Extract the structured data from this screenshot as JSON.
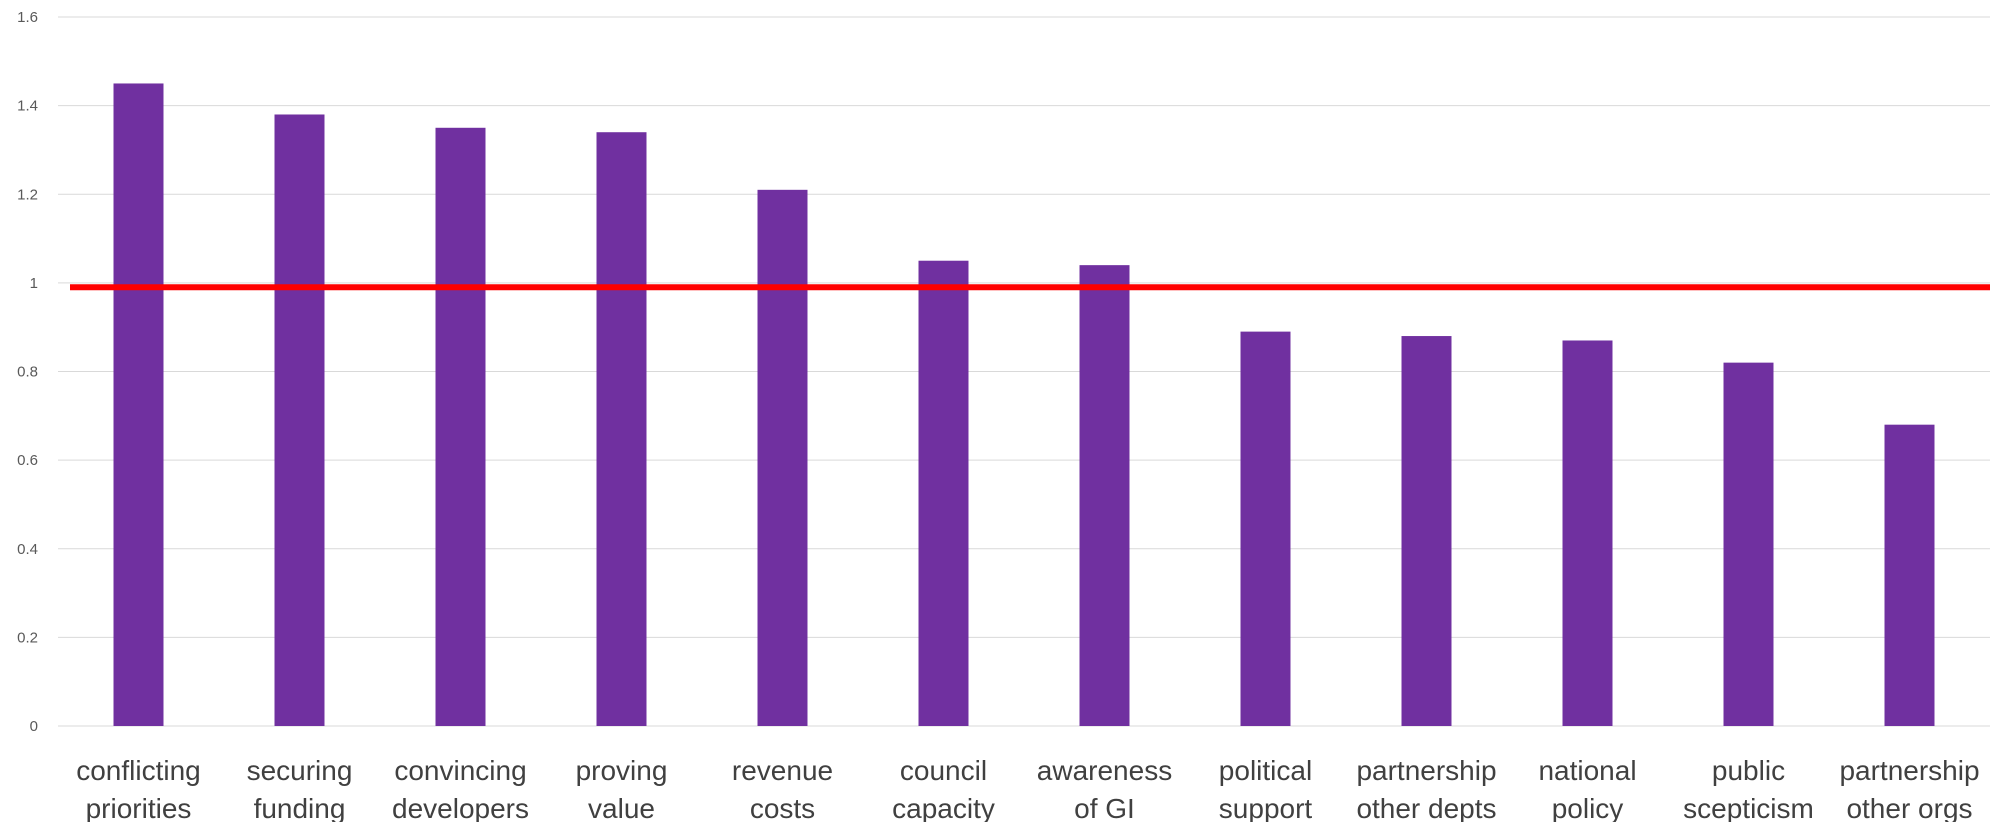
{
  "chart_data": {
    "type": "bar",
    "title": "",
    "xlabel": "",
    "ylabel": "",
    "ylim": [
      0,
      1.6
    ],
    "yticks": [
      "0",
      "0.2",
      "0.4",
      "0.6",
      "0.8",
      "1",
      "1.2",
      "1.4",
      "1.6"
    ],
    "grid": true,
    "legend": "none",
    "categories": [
      [
        "conflicting",
        "priorities"
      ],
      [
        "securing",
        "funding"
      ],
      [
        "convincing",
        "developers"
      ],
      [
        "proving",
        "value"
      ],
      [
        "revenue",
        "costs"
      ],
      [
        "council",
        "capacity"
      ],
      [
        "awareness",
        "of GI"
      ],
      [
        "political",
        "support"
      ],
      [
        "partnership",
        "other depts"
      ],
      [
        "national",
        "policy"
      ],
      [
        "public",
        "scepticism"
      ],
      [
        "partnership",
        "other orgs"
      ]
    ],
    "series": [
      {
        "values": [
          1.45,
          1.38,
          1.35,
          1.34,
          1.21,
          1.05,
          1.04,
          0.89,
          0.88,
          0.87,
          0.82,
          0.68
        ]
      }
    ],
    "reference_line": {
      "value": 0.99,
      "color": "#ff0000"
    },
    "colors": {
      "bar": "#7030a0",
      "reference_line": "#ff0000",
      "grid": "#d9d9d9"
    }
  }
}
